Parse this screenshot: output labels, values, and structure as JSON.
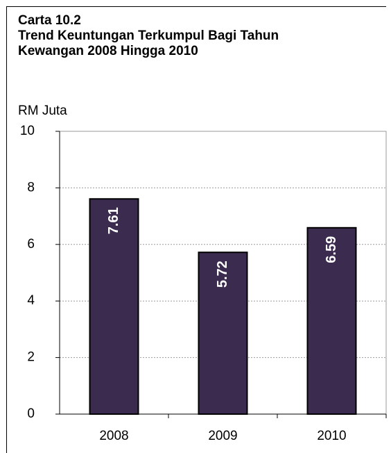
{
  "chart_data": {
    "type": "bar",
    "title": "Carta 10.2",
    "subtitle": "Trend Keuntungan Terkumpul Bagi Tahun Kewangan 2008 Hingga 2010",
    "y_label": "RM Juta",
    "categories": [
      "2008",
      "2009",
      "2010"
    ],
    "values": [
      7.61,
      5.72,
      6.59
    ],
    "color": "#3b2b4e",
    "ylim": [
      0,
      10
    ],
    "yticks": [
      0,
      2,
      4,
      6,
      8,
      10
    ],
    "grid": true
  }
}
